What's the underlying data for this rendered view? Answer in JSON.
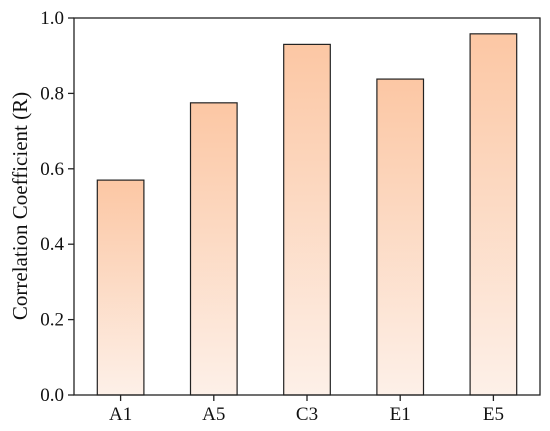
{
  "chart_data": {
    "type": "bar",
    "categories": [
      "A1",
      "A5",
      "C3",
      "E1",
      "E5"
    ],
    "values": [
      0.57,
      0.775,
      0.93,
      0.838,
      0.958
    ],
    "title": "",
    "xlabel": "",
    "ylabel": "Correlation Coefficient (R)",
    "ylim": [
      0.0,
      1.0
    ],
    "yticks": [
      "0.0",
      "0.2",
      "0.4",
      "0.6",
      "0.8",
      "1.0"
    ],
    "grid": false,
    "bar_gradient": {
      "top": "#fcc7a4",
      "bottom": "#fdf0e8"
    },
    "bar_outline": "#222222"
  }
}
